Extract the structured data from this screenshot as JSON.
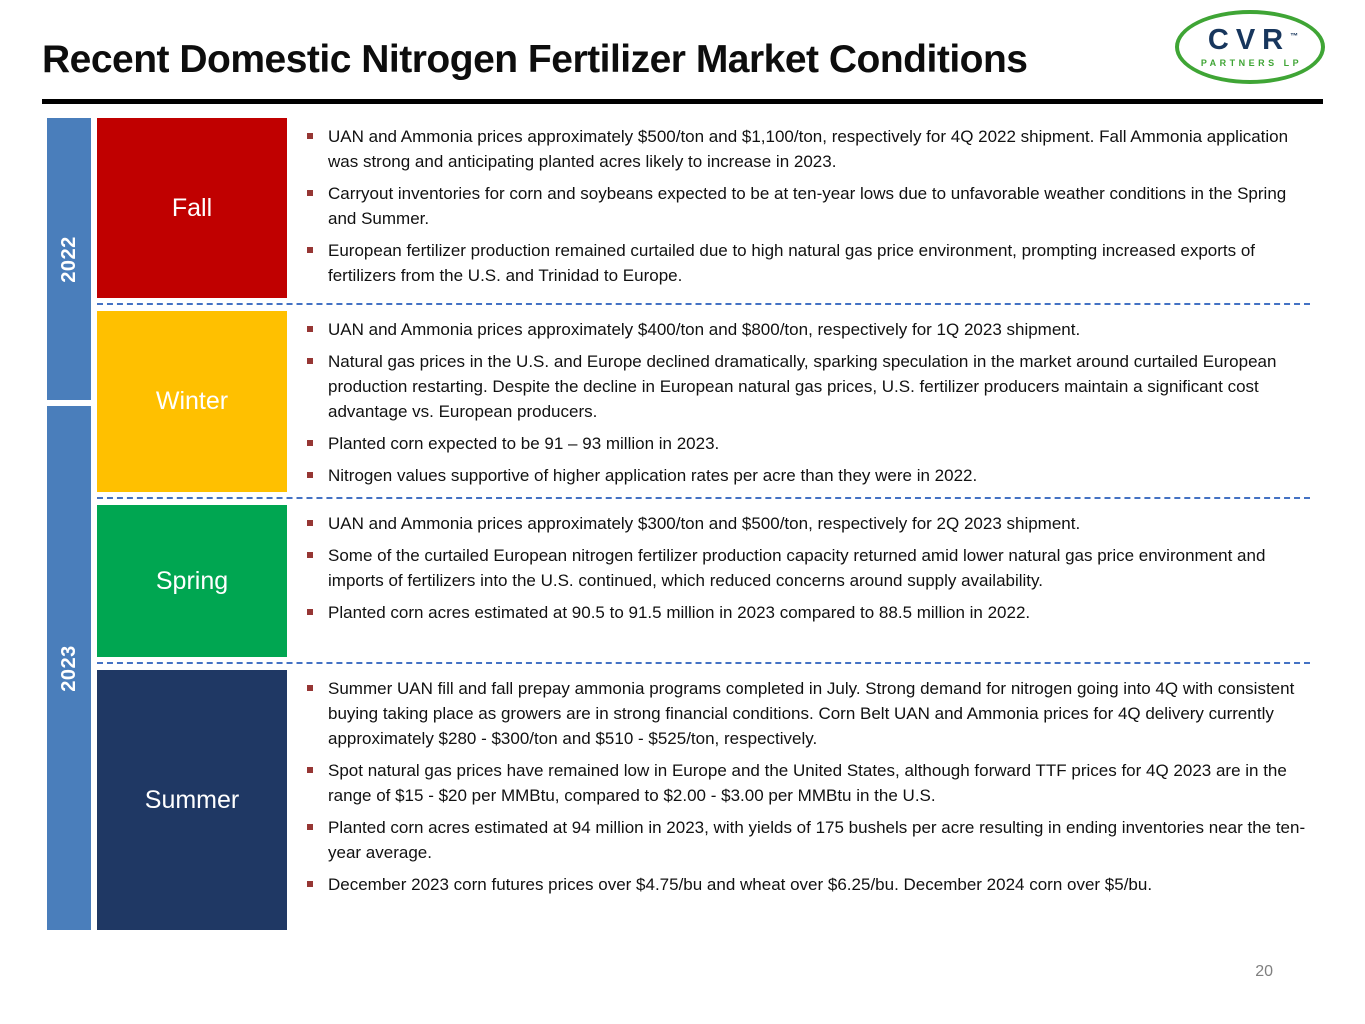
{
  "slide": {
    "title": "Recent Domestic Nitrogen Fertilizer Market Conditions",
    "page_number": "20"
  },
  "logo": {
    "brand": "CVR",
    "trademark": "™",
    "sub": "PARTNERS LP"
  },
  "colors": {
    "year_bar": "#4A7EBB",
    "bullet": "#963634",
    "separator": "#4472C4",
    "title_rule": "#000000",
    "logo_green": "#3FA535",
    "logo_blue": "#17365D",
    "fall": "#C00000",
    "winter": "#FFC000",
    "spring": "#00A651",
    "summer": "#1F3864"
  },
  "years": [
    {
      "label": "2022"
    },
    {
      "label": "2023"
    }
  ],
  "sections": [
    {
      "season": "Fall",
      "color": "#C00000",
      "bullets": [
        "UAN and Ammonia prices approximately $500/ton and $1,100/ton, respectively for 4Q 2022 shipment. Fall Ammonia application was strong and anticipating planted acres likely to increase in 2023.",
        "Carryout inventories for corn and soybeans expected to be at ten-year lows due to unfavorable weather conditions in the Spring and Summer.",
        "European fertilizer production remained curtailed due to high natural gas price environment, prompting increased exports of fertilizers from the U.S. and Trinidad to Europe."
      ]
    },
    {
      "season": "Winter",
      "color": "#FFC000",
      "bullets": [
        "UAN and Ammonia prices approximately $400/ton and $800/ton, respectively for 1Q 2023 shipment.",
        "Natural gas prices in the U.S. and Europe declined dramatically, sparking speculation in the market around curtailed European production restarting. Despite the decline in European natural gas prices, U.S. fertilizer producers maintain a significant cost advantage vs. European producers.",
        "Planted corn expected to be 91 – 93 million in 2023.",
        "Nitrogen values supportive of higher application rates per acre than they were in 2022."
      ]
    },
    {
      "season": "Spring",
      "color": "#00A651",
      "bullets": [
        "UAN and Ammonia prices approximately $300/ton and $500/ton, respectively for 2Q 2023 shipment.",
        "Some of the curtailed European nitrogen fertilizer production capacity returned amid lower natural gas price environment and imports of fertilizers into the U.S. continued, which reduced concerns around supply availability.",
        "Planted corn acres estimated at 90.5 to 91.5 million in 2023 compared to 88.5 million in 2022."
      ]
    },
    {
      "season": "Summer",
      "color": "#1F3864",
      "bullets": [
        "Summer UAN fill and fall prepay ammonia programs completed in July. Strong demand for nitrogen going into 4Q with consistent buying taking place as growers are in strong financial conditions. Corn Belt UAN and Ammonia prices for 4Q delivery currently approximately $280 - $300/ton and $510 - $525/ton, respectively.",
        "Spot natural gas prices have remained low in Europe and the United States, although forward TTF prices for 4Q 2023 are in the range of $15 - $20 per MMBtu, compared to $2.00 - $3.00 per MMBtu in the U.S.",
        "Planted corn acres estimated at 94 million in 2023, with yields of 175 bushels per acre resulting in ending inventories near the ten-year average.",
        "December 2023 corn futures prices over $4.75/bu and wheat over $6.25/bu. December 2024 corn over $5/bu."
      ]
    }
  ]
}
